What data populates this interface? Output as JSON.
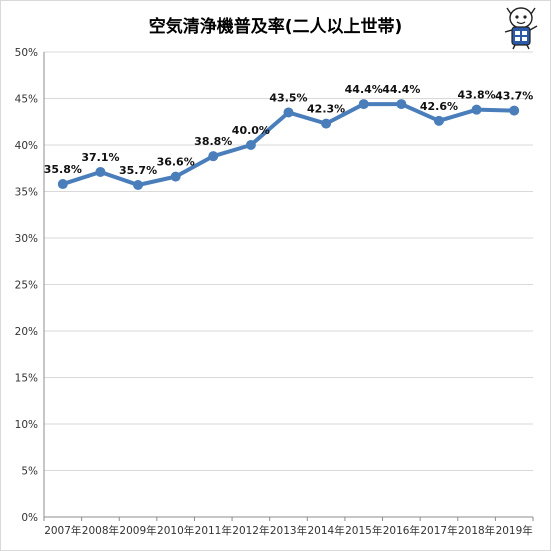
{
  "chart_data": {
    "type": "line",
    "title": "空気清浄機普及率(二人以上世帯)",
    "x": [
      "2007年",
      "2008年",
      "2009年",
      "2010年",
      "2011年",
      "2012年",
      "2013年",
      "2014年",
      "2015年",
      "2016年",
      "2017年",
      "2018年",
      "2019年"
    ],
    "series": [
      {
        "values": [
          35.8,
          37.1,
          35.7,
          36.6,
          38.8,
          40.0,
          43.5,
          42.3,
          44.4,
          44.4,
          42.6,
          43.8,
          43.7
        ],
        "data_labels": [
          "35.8%",
          "37.1%",
          "35.7%",
          "36.6%",
          "38.8%",
          "40.0%",
          "43.5%",
          "42.3%",
          "44.4%",
          "44.4%",
          "42.6%",
          "43.8%",
          "43.7%"
        ],
        "color": "#4a7ebb"
      }
    ],
    "ylim": [
      0,
      50
    ],
    "yticks": [
      "0%",
      "5%",
      "10%",
      "15%",
      "20%",
      "25%",
      "30%",
      "35%",
      "40%",
      "45%",
      "50%"
    ],
    "grid": true,
    "legend": "none"
  },
  "colors": {
    "line": "#4a7ebb",
    "grid": "#d9d9d9",
    "axis": "#8c8c8c"
  },
  "decoration": {
    "mascot": "cartoon-mascot-icon"
  }
}
